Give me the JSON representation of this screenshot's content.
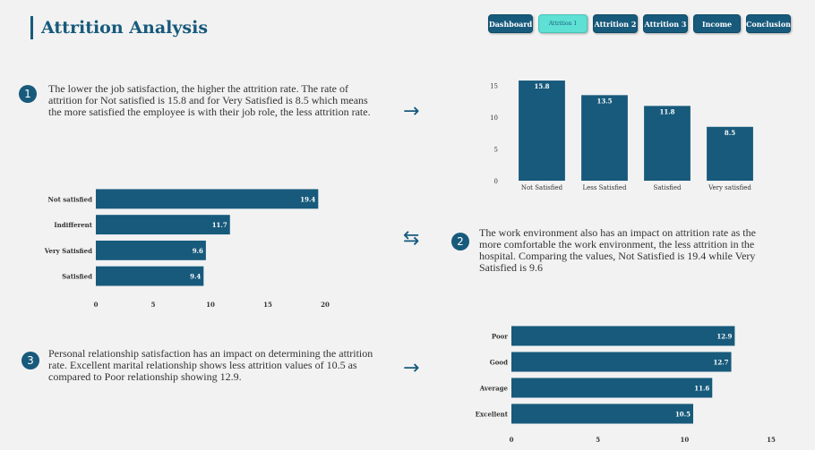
{
  "header": {
    "title": "Attrition Analysis"
  },
  "nav": [
    {
      "label": "Dashboard",
      "active": false
    },
    {
      "label": "Attrition 1",
      "active": true
    },
    {
      "label": "Attrition 2",
      "active": false
    },
    {
      "label": "Attrition 3",
      "active": false
    },
    {
      "label": "Income",
      "active": false
    },
    {
      "label": "Conclusion",
      "active": false
    }
  ],
  "insights": [
    {
      "number": "1",
      "text": "The lower the job satisfaction, the higher the attrition rate. The rate of attrition for Not satisfied is 15.8 and for Very Satisfied is 8.5 which means the more satisfied the employee is with their job role, the less attrition rate.",
      "arrow": "→"
    },
    {
      "number": "2",
      "text": "The work environment also has an impact on attrition rate as the more comfortable the work environment, the less attrition in the hospital. Comparing the values, Not Satisfied is 19.4 while Very Satisfied is 9.6",
      "arrow": "⇆"
    },
    {
      "number": "3",
      "text": "Personal relationship satisfaction has an impact on determining the attrition rate. Excellent marital relationship shows less attrition values of 10.5 as compared to Poor relationship showing 12.9.",
      "arrow": "→"
    }
  ],
  "colors": {
    "bar": "#175a7c",
    "accent": "#5fe0d4",
    "background": "#f2f2f2"
  },
  "chart_data": [
    {
      "type": "bar",
      "orientation": "vertical",
      "categories": [
        "Not Satisfied",
        "Less Satisfied",
        "Satisfied",
        "Very satisfied"
      ],
      "values": [
        15.8,
        13.5,
        11.8,
        8.5
      ],
      "value_labels": [
        "15.8",
        "13.5",
        "11.8",
        "8.5"
      ],
      "yticks": [
        0,
        5,
        10,
        15
      ],
      "ylim": [
        0,
        17.5
      ],
      "title": "",
      "xlabel": "",
      "ylabel": ""
    },
    {
      "type": "bar",
      "orientation": "horizontal",
      "categories": [
        "Not satisfied",
        "Indifferent",
        "Very Satisfied",
        "Satisfied"
      ],
      "values": [
        19.4,
        11.7,
        9.6,
        9.4
      ],
      "value_labels": [
        "19.4",
        "11.7",
        "9.6",
        "9.4"
      ],
      "xticks": [
        0,
        5,
        10,
        15,
        20
      ],
      "xlim": [
        0,
        20
      ],
      "title": "",
      "xlabel": "",
      "ylabel": ""
    },
    {
      "type": "bar",
      "orientation": "horizontal",
      "categories": [
        "Poor",
        "Good",
        "Average",
        "Excellent"
      ],
      "values": [
        12.9,
        12.7,
        11.6,
        10.5
      ],
      "value_labels": [
        "12.9",
        "12.7",
        "11.6",
        "10.5"
      ],
      "xticks": [
        0,
        5,
        10,
        15
      ],
      "xlim": [
        0,
        15
      ],
      "title": "",
      "xlabel": "",
      "ylabel": ""
    }
  ]
}
